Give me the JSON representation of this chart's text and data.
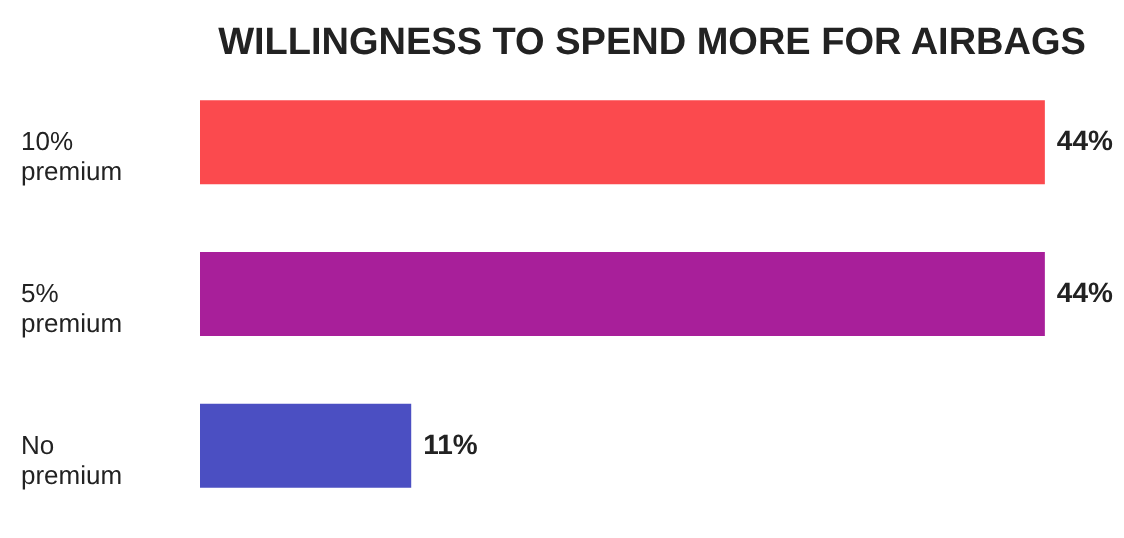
{
  "chart_data": {
    "type": "bar",
    "orientation": "horizontal",
    "title": "WILLINGNESS TO SPEND MORE FOR AIRBAGS",
    "categories": [
      "10% premium",
      "5% premium",
      "No premium"
    ],
    "values": [
      44,
      44,
      11
    ],
    "colors": [
      "#fb4a4e",
      "#a81f9a",
      "#4b4fc2"
    ],
    "data_labels": true,
    "value_labels": [
      "44%",
      "44%",
      "11%"
    ],
    "grid": false
  }
}
